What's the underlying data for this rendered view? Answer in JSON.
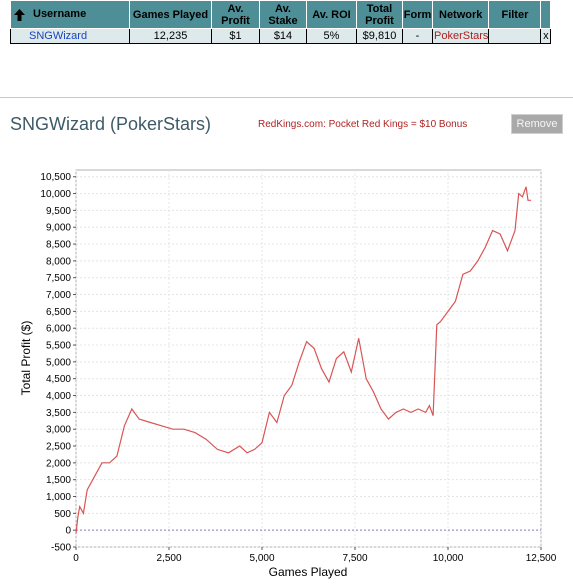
{
  "table": {
    "headers": {
      "username": "Username",
      "games_played": "Games Played",
      "av_profit": "Av. Profit",
      "av_stake": "Av. Stake",
      "av_roi": "Av. ROI",
      "total_profit": "Total Profit",
      "form": "Form",
      "network": "Network",
      "filter": "Filter"
    },
    "row": {
      "username": "SNGWizard",
      "games_played": "12,235",
      "av_profit": "$1",
      "av_stake": "$14",
      "av_roi": "5%",
      "total_profit": "$9,810",
      "form": "-",
      "network": "PokerStars",
      "filter": "",
      "close": "x"
    }
  },
  "panel": {
    "title": "SNGWizard (PokerStars)",
    "promo": "RedKings.com: Pocket Red Kings = $10 Bonus",
    "remove_label": "Remove"
  },
  "colors": {
    "header_bg": "#4e8f97",
    "row_bg": "#dde9ea",
    "line": "#d95555",
    "zero_line": "#8a7cc6"
  },
  "icons": {
    "sort": "up-arrow-icon"
  },
  "chart_data": {
    "type": "line",
    "xlabel": "Games Played",
    "ylabel": "Total Profit ($)",
    "xlim": [
      0,
      12500
    ],
    "ylim": [
      -500,
      10700
    ],
    "x_ticks": [
      0,
      2500,
      5000,
      7500,
      10000,
      12500
    ],
    "x_tick_labels": [
      "0",
      "2,500",
      "5,000",
      "7,500",
      "10,000",
      "12,500"
    ],
    "y_ticks": [
      -500,
      0,
      500,
      1000,
      1500,
      2000,
      2500,
      3000,
      3500,
      4000,
      4500,
      5000,
      5500,
      6000,
      6500,
      7000,
      7500,
      8000,
      8500,
      9000,
      9500,
      10000,
      10500
    ],
    "y_tick_labels": [
      "-500",
      "0",
      "500",
      "1,000",
      "1,500",
      "2,000",
      "2,500",
      "3,000",
      "3,500",
      "4,000",
      "4,500",
      "5,000",
      "5,500",
      "6,000",
      "6,500",
      "7,000",
      "7,500",
      "8,000",
      "8,500",
      "9,000",
      "9,500",
      "10,000",
      "10,500"
    ],
    "grid": true,
    "series": [
      {
        "x": [
          0,
          50,
          100,
          200,
          300,
          500,
          700,
          900,
          1100,
          1300,
          1500,
          1700,
          2000,
          2300,
          2600,
          2900,
          3200,
          3500,
          3800,
          4100,
          4400,
          4600,
          4800,
          5000,
          5200,
          5400,
          5600,
          5800,
          6000,
          6200,
          6400,
          6600,
          6800,
          7000,
          7200,
          7400,
          7600,
          7800,
          8000,
          8200,
          8400,
          8600,
          8800,
          9000,
          9200,
          9400,
          9500,
          9600,
          9700,
          9800,
          10000,
          10200,
          10400,
          10600,
          10800,
          11000,
          11200,
          11400,
          11600,
          11800,
          11900,
          12000,
          12100,
          12150,
          12235
        ],
        "y": [
          -100,
          400,
          700,
          500,
          1200,
          1600,
          2000,
          2000,
          2200,
          3100,
          3600,
          3300,
          3200,
          3100,
          3000,
          3000,
          2900,
          2700,
          2400,
          2300,
          2500,
          2300,
          2400,
          2600,
          3500,
          3200,
          4000,
          4300,
          5000,
          5600,
          5400,
          4800,
          4400,
          5100,
          5300,
          4700,
          5700,
          4500,
          4100,
          3600,
          3300,
          3500,
          3600,
          3500,
          3600,
          3500,
          3700,
          3400,
          6100,
          6200,
          6500,
          6800,
          7600,
          7700,
          8000,
          8400,
          8900,
          8800,
          8300,
          8900,
          10000,
          9900,
          10200,
          9800,
          9800
        ]
      }
    ]
  }
}
